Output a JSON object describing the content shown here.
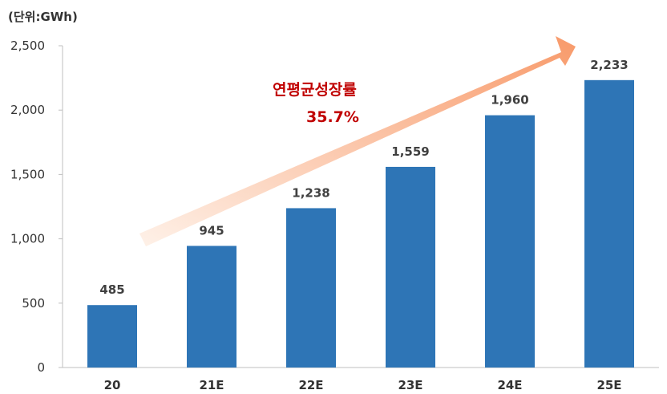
{
  "chart_data": {
    "type": "bar",
    "unit_label": "(단위:GWh)",
    "categories": [
      "20",
      "21E",
      "22E",
      "23E",
      "24E",
      "25E"
    ],
    "values": [
      485,
      945,
      1238,
      1559,
      1960,
      2233
    ],
    "data_labels": [
      "485",
      "945",
      "1,238",
      "1,559",
      "1,960",
      "2,233"
    ],
    "ylim": [
      0,
      2500
    ],
    "yticks": [
      0,
      500,
      1000,
      1500,
      2000,
      2500
    ],
    "ytick_labels": [
      "0",
      "500",
      "1,000",
      "1,500",
      "2,000",
      "2,500"
    ],
    "bar_color": "#2e75b6",
    "grid": false,
    "legend": "none"
  },
  "annotation": {
    "label": "연평균성장률",
    "value": "35.7%",
    "color": "#c00000",
    "arrow_color": "#f8a880"
  }
}
